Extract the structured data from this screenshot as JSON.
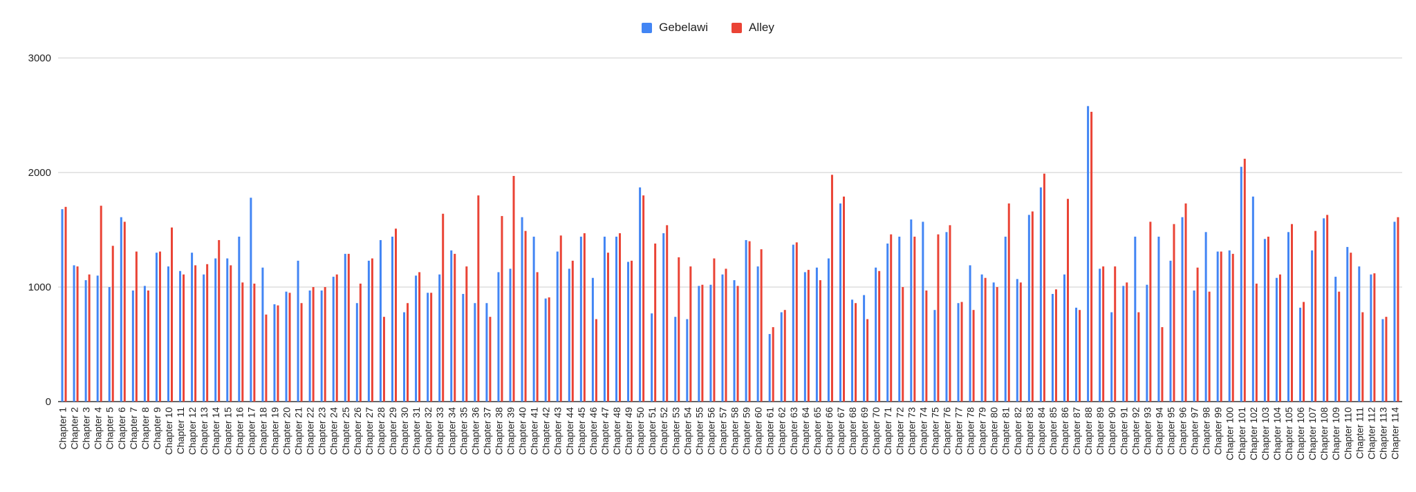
{
  "chart_data": {
    "type": "bar",
    "title": "",
    "xlabel": "",
    "ylabel": "",
    "ylim": [
      0,
      3000
    ],
    "yticks": [
      0,
      1000,
      2000,
      3000
    ],
    "grid": true,
    "legend_position": "top-center",
    "categories": [
      "Chapter 1",
      "Chapter 2",
      "Chapter 3",
      "Chapter 4",
      "Chapter 5",
      "Chapter 6",
      "Chapter 7",
      "Chapter 8",
      "Chapter 9",
      "Chapter 10",
      "Chapter 11",
      "Chapter 12",
      "Chapter 13",
      "Chapter 14",
      "Chapter 15",
      "Chapter 16",
      "Chapter 17",
      "Chapter 18",
      "Chapter 19",
      "Chapter 20",
      "Chapter 21",
      "Chapter 22",
      "Chapter 23",
      "Chapter 24",
      "Chapter 25",
      "Chapter 26",
      "Chapter 27",
      "Chapter 28",
      "Chapter 29",
      "Chapter 30",
      "Chapter 31",
      "Chapter 32",
      "Chapter 33",
      "Chapter 34",
      "Chapter 35",
      "Chapter 36",
      "Chapter 37",
      "Chapter 38",
      "Chapter 39",
      "Chapter 40",
      "Chapter 41",
      "Chapter 42",
      "Chapter 43",
      "Chapter 44",
      "Chapter 45",
      "Chapter 46",
      "Chapter 47",
      "Chapter 48",
      "Chapter 49",
      "Chapter 50",
      "Chapter 51",
      "Chapter 52",
      "Chapter 53",
      "Chapter 54",
      "Chapter 55",
      "Chapter 56",
      "Chapter 57",
      "Chapter 58",
      "Chapter 59",
      "Chapter 60",
      "Chapter 61",
      "Chapter 62",
      "Chapter 63",
      "Chapter 64",
      "Chapter 65",
      "Chapter 66",
      "Chapter 67",
      "Chapter 68",
      "Chapter 69",
      "Chapter 70",
      "Chapter 71",
      "Chapter 72",
      "Chapter 73",
      "Chapter 74",
      "Chapter 75",
      "Chapter 76",
      "Chapter 77",
      "Chapter 78",
      "Chapter 79",
      "Chapter 80",
      "Chapter 81",
      "Chapter 82",
      "Chapter 83",
      "Chapter 84",
      "Chapter 85",
      "Chapter 86",
      "Chapter 87",
      "Chapter 88",
      "Chapter 89",
      "Chapter 90",
      "Chapter 91",
      "Chapter 92",
      "Chapter 93",
      "Chapter 94",
      "Chapter 95",
      "Chapter 96",
      "Chapter 97",
      "Chapter 98",
      "Chapter 99",
      "Chapter 100",
      "Chapter 101",
      "Chapter 102",
      "Chapter 103",
      "Chapter 104",
      "Chapter 105",
      "Chapter 106",
      "Chapter 107",
      "Chapter 108",
      "Chapter 109",
      "Chapter 110",
      "Chapter 111",
      "Chapter 112",
      "Chapter 113",
      "Chapter 114"
    ],
    "series": [
      {
        "name": "Gebelawi",
        "color": "#4285f4",
        "values": [
          1680,
          1190,
          1060,
          1100,
          1000,
          1610,
          970,
          1010,
          1300,
          1180,
          1140,
          1300,
          1110,
          1250,
          1250,
          1440,
          1780,
          1170,
          850,
          960,
          1230,
          970,
          970,
          1090,
          1290,
          860,
          1230,
          1410,
          1440,
          780,
          1100,
          950,
          1110,
          1320,
          940,
          860,
          860,
          1130,
          1160,
          1610,
          1440,
          900,
          1310,
          1160,
          1440,
          1080,
          1440,
          1440,
          1220,
          1870,
          770,
          1470,
          740,
          720,
          1010,
          1020,
          1110,
          1060,
          1410,
          1180,
          590,
          780,
          1370,
          1130,
          1170,
          1250,
          1730,
          890,
          930,
          1170,
          1380,
          1440,
          1590,
          1570,
          800,
          1480,
          860,
          1190,
          1110,
          1040,
          1440,
          1070,
          1630,
          1870,
          940,
          1110,
          820,
          2580,
          1160,
          780,
          1010,
          1440,
          1020,
          1440,
          1230,
          1610,
          970,
          1480,
          1310,
          1320,
          2050,
          1790,
          1420,
          1080,
          1480,
          820,
          1320,
          1600,
          1090,
          1350,
          1180,
          1110,
          720,
          1570
        ]
      },
      {
        "name": "Alley",
        "color": "#ea4335",
        "values": [
          1700,
          1180,
          1110,
          1710,
          1360,
          1570,
          1310,
          970,
          1310,
          1520,
          1110,
          1190,
          1200,
          1410,
          1190,
          1040,
          1030,
          760,
          840,
          950,
          860,
          1000,
          1000,
          1110,
          1290,
          1030,
          1250,
          740,
          1510,
          860,
          1130,
          950,
          1640,
          1290,
          1180,
          1800,
          740,
          1620,
          1970,
          1490,
          1130,
          910,
          1450,
          1230,
          1470,
          720,
          1300,
          1470,
          1230,
          1800,
          1380,
          1540,
          1260,
          1180,
          1020,
          1250,
          1160,
          1010,
          1400,
          1330,
          650,
          800,
          1390,
          1150,
          1060,
          1980,
          1790,
          860,
          720,
          1140,
          1460,
          1000,
          1440,
          970,
          1460,
          1540,
          870,
          800,
          1080,
          1000,
          1730,
          1040,
          1660,
          1990,
          980,
          1770,
          800,
          2530,
          1180,
          1180,
          1040,
          780,
          1570,
          650,
          1550,
          1730,
          1170,
          960,
          1310,
          1290,
          2120,
          1030,
          1440,
          1110,
          1550,
          870,
          1490,
          1630,
          960,
          1300,
          780,
          1120,
          740,
          1610
        ]
      }
    ]
  }
}
